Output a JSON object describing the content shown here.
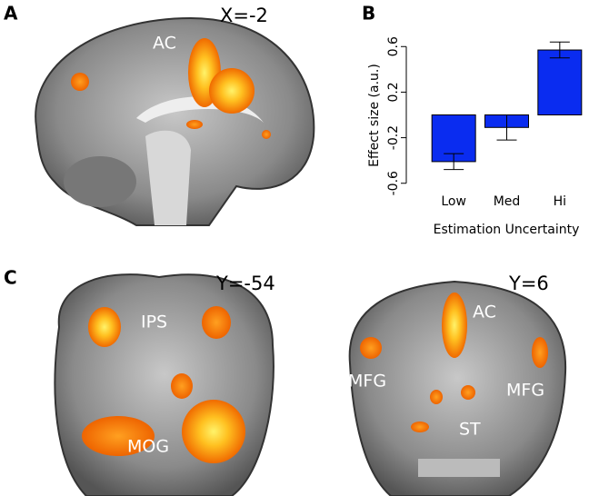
{
  "panels": {
    "A": {
      "label": "A",
      "coordinate": "X=-2",
      "regions": [
        "AC"
      ]
    },
    "C": {
      "label": "C",
      "left": {
        "coordinate": "Y=-54",
        "regions": [
          "IPS",
          "MOG"
        ]
      },
      "right": {
        "coordinate": "Y=6",
        "regions": [
          "AC",
          "MFG",
          "MFG",
          "ST"
        ]
      }
    }
  },
  "chart_data": {
    "type": "bar",
    "panel_label": "B",
    "categories": [
      "Low",
      "Med",
      "Hi"
    ],
    "values": [
      -0.41,
      -0.11,
      0.57
    ],
    "errors": [
      0.07,
      0.11,
      0.07
    ],
    "color": "#0a2cf0",
    "xlabel": "Estimation Uncertainty",
    "ylabel": "Effect size (a.u.)",
    "ylim": [
      -0.65,
      0.65
    ],
    "yticks": [
      -0.6,
      -0.2,
      0.2,
      0.6
    ]
  }
}
